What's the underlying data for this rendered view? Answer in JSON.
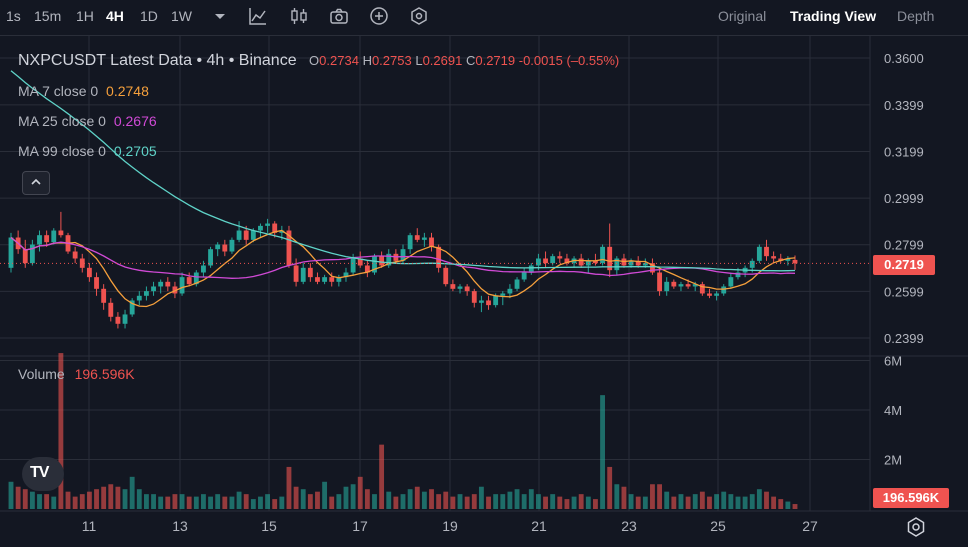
{
  "toolbar": {
    "timeframes": [
      "1s",
      "15m",
      "1H",
      "4H",
      "1D",
      "1W"
    ],
    "active_timeframe": "4H",
    "icons": [
      "chevron-down-icon",
      "line-chart-icon",
      "candles-icon",
      "camera-icon",
      "plus-circle-icon",
      "settings-circle-icon"
    ],
    "views": [
      "Original",
      "Trading View",
      "Depth"
    ],
    "active_view": "Trading View"
  },
  "legend": {
    "title": "NXPCUSDT Latest Data • 4h • Binance",
    "o_label": "O",
    "o_value": "0.2734",
    "h_label": "H",
    "h_value": "0.2753",
    "l_label": "L",
    "l_value": "0.2691",
    "c_label": "C",
    "c_value": "0.2719",
    "change": "-0.0015 (–0.55%)",
    "ma7_label": "MA 7 close 0",
    "ma7_value": "0.2748",
    "ma25_label": "MA 25 close 0",
    "ma25_value": "0.2676",
    "ma99_label": "MA 99 close 0",
    "ma99_value": "0.2705",
    "volume_label": "Volume",
    "volume_value": "196.596K"
  },
  "price_tag": "0.2719",
  "volume_tag": "196.596K",
  "colors": {
    "up": "#26a69a",
    "down": "#ef5350",
    "ma7": "#f6a03c",
    "ma25": "#d04ad6",
    "ma99": "#5fd3c8",
    "background": "#131722",
    "grid": "#2a2e39"
  },
  "chart_data": {
    "type": "candlestick",
    "symbol": "NXPCUSDT",
    "interval": "4h",
    "exchange": "Binance",
    "price_axis_ticks": [
      "0.3600",
      "0.3399",
      "0.3199",
      "0.2999",
      "0.2799",
      "0.2599",
      "0.2399"
    ],
    "volume_axis_ticks": [
      "6M",
      "4M",
      "2M"
    ],
    "x_tick_labels": [
      "11",
      "13",
      "15",
      "17",
      "19",
      "21",
      "23",
      "25",
      "27"
    ],
    "ylim": [
      0.232,
      0.362
    ],
    "volume_ylim": [
      0,
      6800000
    ],
    "last_price": 0.2719,
    "candles": [
      [
        0.27,
        0.285,
        0.268,
        0.283,
        1.1
      ],
      [
        0.283,
        0.286,
        0.276,
        0.278,
        0.9
      ],
      [
        0.278,
        0.282,
        0.27,
        0.272,
        0.8
      ],
      [
        0.272,
        0.282,
        0.271,
        0.28,
        0.7
      ],
      [
        0.28,
        0.286,
        0.277,
        0.284,
        0.6
      ],
      [
        0.284,
        0.286,
        0.279,
        0.281,
        0.6
      ],
      [
        0.281,
        0.287,
        0.28,
        0.286,
        0.5
      ],
      [
        0.286,
        0.294,
        0.283,
        0.284,
        6.3
      ],
      [
        0.284,
        0.285,
        0.276,
        0.277,
        0.7
      ],
      [
        0.277,
        0.279,
        0.272,
        0.274,
        0.5
      ],
      [
        0.274,
        0.276,
        0.268,
        0.27,
        0.6
      ],
      [
        0.27,
        0.272,
        0.264,
        0.266,
        0.7
      ],
      [
        0.266,
        0.268,
        0.258,
        0.261,
        0.8
      ],
      [
        0.261,
        0.263,
        0.252,
        0.255,
        0.9
      ],
      [
        0.255,
        0.257,
        0.247,
        0.249,
        1.0
      ],
      [
        0.249,
        0.251,
        0.244,
        0.246,
        0.9
      ],
      [
        0.246,
        0.252,
        0.244,
        0.25,
        0.8
      ],
      [
        0.25,
        0.257,
        0.249,
        0.256,
        1.3
      ],
      [
        0.256,
        0.26,
        0.254,
        0.258,
        0.8
      ],
      [
        0.258,
        0.262,
        0.256,
        0.26,
        0.6
      ],
      [
        0.26,
        0.264,
        0.258,
        0.262,
        0.6
      ],
      [
        0.262,
        0.265,
        0.259,
        0.264,
        0.5
      ],
      [
        0.264,
        0.266,
        0.26,
        0.262,
        0.5
      ],
      [
        0.262,
        0.264,
        0.257,
        0.259,
        0.6
      ],
      [
        0.259,
        0.268,
        0.258,
        0.266,
        0.6
      ],
      [
        0.266,
        0.268,
        0.262,
        0.263,
        0.5
      ],
      [
        0.263,
        0.269,
        0.262,
        0.268,
        0.5
      ],
      [
        0.268,
        0.273,
        0.266,
        0.271,
        0.6
      ],
      [
        0.271,
        0.279,
        0.27,
        0.278,
        0.5
      ],
      [
        0.278,
        0.281,
        0.275,
        0.28,
        0.6
      ],
      [
        0.28,
        0.282,
        0.275,
        0.277,
        0.5
      ],
      [
        0.277,
        0.283,
        0.276,
        0.282,
        0.5
      ],
      [
        0.282,
        0.29,
        0.281,
        0.286,
        0.7
      ],
      [
        0.286,
        0.288,
        0.28,
        0.282,
        0.6
      ],
      [
        0.282,
        0.287,
        0.281,
        0.286,
        0.4
      ],
      [
        0.286,
        0.289,
        0.283,
        0.288,
        0.5
      ],
      [
        0.288,
        0.291,
        0.285,
        0.289,
        0.6
      ],
      [
        0.289,
        0.29,
        0.283,
        0.285,
        0.4
      ],
      [
        0.285,
        0.288,
        0.282,
        0.286,
        0.5
      ],
      [
        0.286,
        0.288,
        0.27,
        0.271,
        1.7
      ],
      [
        0.271,
        0.274,
        0.262,
        0.264,
        0.9
      ],
      [
        0.264,
        0.272,
        0.263,
        0.27,
        0.8
      ],
      [
        0.27,
        0.272,
        0.264,
        0.266,
        0.6
      ],
      [
        0.266,
        0.268,
        0.263,
        0.264,
        0.7
      ],
      [
        0.264,
        0.267,
        0.263,
        0.266,
        1.1
      ],
      [
        0.266,
        0.268,
        0.262,
        0.264,
        0.5
      ],
      [
        0.264,
        0.267,
        0.262,
        0.266,
        0.6
      ],
      [
        0.266,
        0.27,
        0.264,
        0.268,
        0.9
      ],
      [
        0.268,
        0.276,
        0.267,
        0.274,
        1.0
      ],
      [
        0.274,
        0.277,
        0.27,
        0.271,
        1.3
      ],
      [
        0.271,
        0.273,
        0.266,
        0.268,
        0.8
      ],
      [
        0.268,
        0.276,
        0.267,
        0.275,
        0.6
      ],
      [
        0.275,
        0.277,
        0.27,
        0.271,
        2.6
      ],
      [
        0.271,
        0.278,
        0.27,
        0.276,
        0.7
      ],
      [
        0.276,
        0.278,
        0.272,
        0.273,
        0.5
      ],
      [
        0.273,
        0.28,
        0.272,
        0.278,
        0.6
      ],
      [
        0.278,
        0.285,
        0.276,
        0.284,
        0.8
      ],
      [
        0.284,
        0.287,
        0.281,
        0.282,
        0.9
      ],
      [
        0.282,
        0.285,
        0.279,
        0.283,
        0.7
      ],
      [
        0.283,
        0.285,
        0.277,
        0.279,
        0.8
      ],
      [
        0.279,
        0.28,
        0.268,
        0.27,
        0.6
      ],
      [
        0.27,
        0.271,
        0.262,
        0.263,
        0.7
      ],
      [
        0.263,
        0.265,
        0.26,
        0.261,
        0.5
      ],
      [
        0.261,
        0.263,
        0.259,
        0.262,
        0.6
      ],
      [
        0.262,
        0.263,
        0.258,
        0.26,
        0.5
      ],
      [
        0.26,
        0.261,
        0.253,
        0.255,
        0.6
      ],
      [
        0.255,
        0.258,
        0.251,
        0.256,
        0.9
      ],
      [
        0.256,
        0.258,
        0.252,
        0.254,
        0.5
      ],
      [
        0.254,
        0.259,
        0.253,
        0.258,
        0.6
      ],
      [
        0.258,
        0.26,
        0.254,
        0.259,
        0.6
      ],
      [
        0.259,
        0.263,
        0.257,
        0.261,
        0.7
      ],
      [
        0.261,
        0.266,
        0.26,
        0.265,
        0.8
      ],
      [
        0.265,
        0.27,
        0.264,
        0.268,
        0.6
      ],
      [
        0.268,
        0.272,
        0.267,
        0.271,
        0.8
      ],
      [
        0.271,
        0.276,
        0.269,
        0.274,
        0.6
      ],
      [
        0.274,
        0.277,
        0.27,
        0.272,
        0.5
      ],
      [
        0.272,
        0.276,
        0.271,
        0.275,
        0.6
      ],
      [
        0.275,
        0.277,
        0.272,
        0.274,
        0.5
      ],
      [
        0.274,
        0.276,
        0.271,
        0.272,
        0.4
      ],
      [
        0.272,
        0.275,
        0.27,
        0.274,
        0.5
      ],
      [
        0.274,
        0.276,
        0.27,
        0.271,
        0.6
      ],
      [
        0.271,
        0.274,
        0.268,
        0.273,
        0.5
      ],
      [
        0.273,
        0.276,
        0.271,
        0.272,
        0.4
      ],
      [
        0.272,
        0.28,
        0.271,
        0.279,
        4.6
      ],
      [
        0.279,
        0.289,
        0.266,
        0.269,
        1.7
      ],
      [
        0.269,
        0.275,
        0.267,
        0.274,
        1.0
      ],
      [
        0.274,
        0.276,
        0.27,
        0.271,
        0.9
      ],
      [
        0.271,
        0.274,
        0.27,
        0.273,
        0.6
      ],
      [
        0.273,
        0.275,
        0.27,
        0.271,
        0.5
      ],
      [
        0.271,
        0.274,
        0.27,
        0.272,
        0.5
      ],
      [
        0.272,
        0.274,
        0.267,
        0.268,
        1.0
      ],
      [
        0.268,
        0.27,
        0.258,
        0.26,
        1.0
      ],
      [
        0.26,
        0.266,
        0.258,
        0.264,
        0.7
      ],
      [
        0.264,
        0.265,
        0.261,
        0.262,
        0.5
      ],
      [
        0.262,
        0.264,
        0.26,
        0.263,
        0.6
      ],
      [
        0.263,
        0.265,
        0.261,
        0.262,
        0.5
      ],
      [
        0.262,
        0.264,
        0.26,
        0.263,
        0.6
      ],
      [
        0.263,
        0.264,
        0.258,
        0.259,
        0.7
      ],
      [
        0.259,
        0.261,
        0.257,
        0.258,
        0.5
      ],
      [
        0.258,
        0.26,
        0.256,
        0.259,
        0.6
      ],
      [
        0.259,
        0.263,
        0.258,
        0.262,
        0.7
      ],
      [
        0.262,
        0.268,
        0.261,
        0.266,
        0.6
      ],
      [
        0.266,
        0.27,
        0.265,
        0.268,
        0.5
      ],
      [
        0.268,
        0.271,
        0.266,
        0.27,
        0.5
      ],
      [
        0.27,
        0.274,
        0.268,
        0.273,
        0.6
      ],
      [
        0.273,
        0.28,
        0.272,
        0.279,
        0.8
      ],
      [
        0.279,
        0.282,
        0.273,
        0.275,
        0.7
      ],
      [
        0.275,
        0.277,
        0.272,
        0.274,
        0.5
      ],
      [
        0.274,
        0.276,
        0.272,
        0.273,
        0.4
      ],
      [
        0.273,
        0.275,
        0.271,
        0.274,
        0.3
      ],
      [
        0.2734,
        0.2753,
        0.2691,
        0.2719,
        0.2
      ]
    ]
  }
}
